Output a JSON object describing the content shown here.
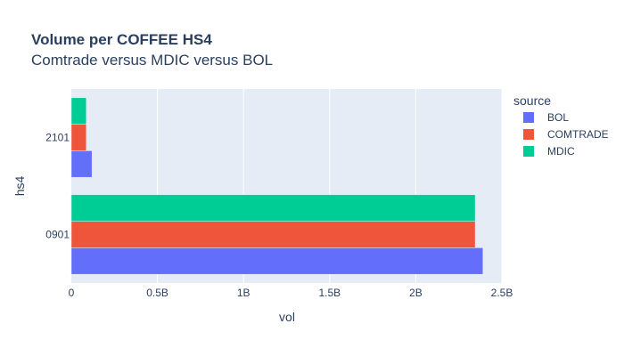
{
  "chart_data": {
    "type": "bar",
    "orientation": "horizontal",
    "title": "Volume per COFFEE HS4",
    "subtitle": "Comtrade versus MDIC versus BOL",
    "xlabel": "vol",
    "ylabel": "hs4",
    "xlim": [
      0,
      2500000000
    ],
    "x_ticks": [
      0,
      500000000,
      1000000000,
      1500000000,
      2000000000,
      2500000000
    ],
    "x_tick_labels": [
      "0",
      "0.5B",
      "1B",
      "1.5B",
      "2B",
      "2.5B"
    ],
    "categories": [
      "0901",
      "2101"
    ],
    "legend_title": "source",
    "legend_position": "right",
    "grid": true,
    "series": [
      {
        "name": "BOL",
        "color": "#636efa",
        "values": [
          2390000000,
          120000000
        ]
      },
      {
        "name": "COMTRADE",
        "color": "#ef553b",
        "values": [
          2345000000,
          87000000
        ]
      },
      {
        "name": "MDIC",
        "color": "#00cc96",
        "values": [
          2345000000,
          87000000
        ]
      }
    ]
  }
}
